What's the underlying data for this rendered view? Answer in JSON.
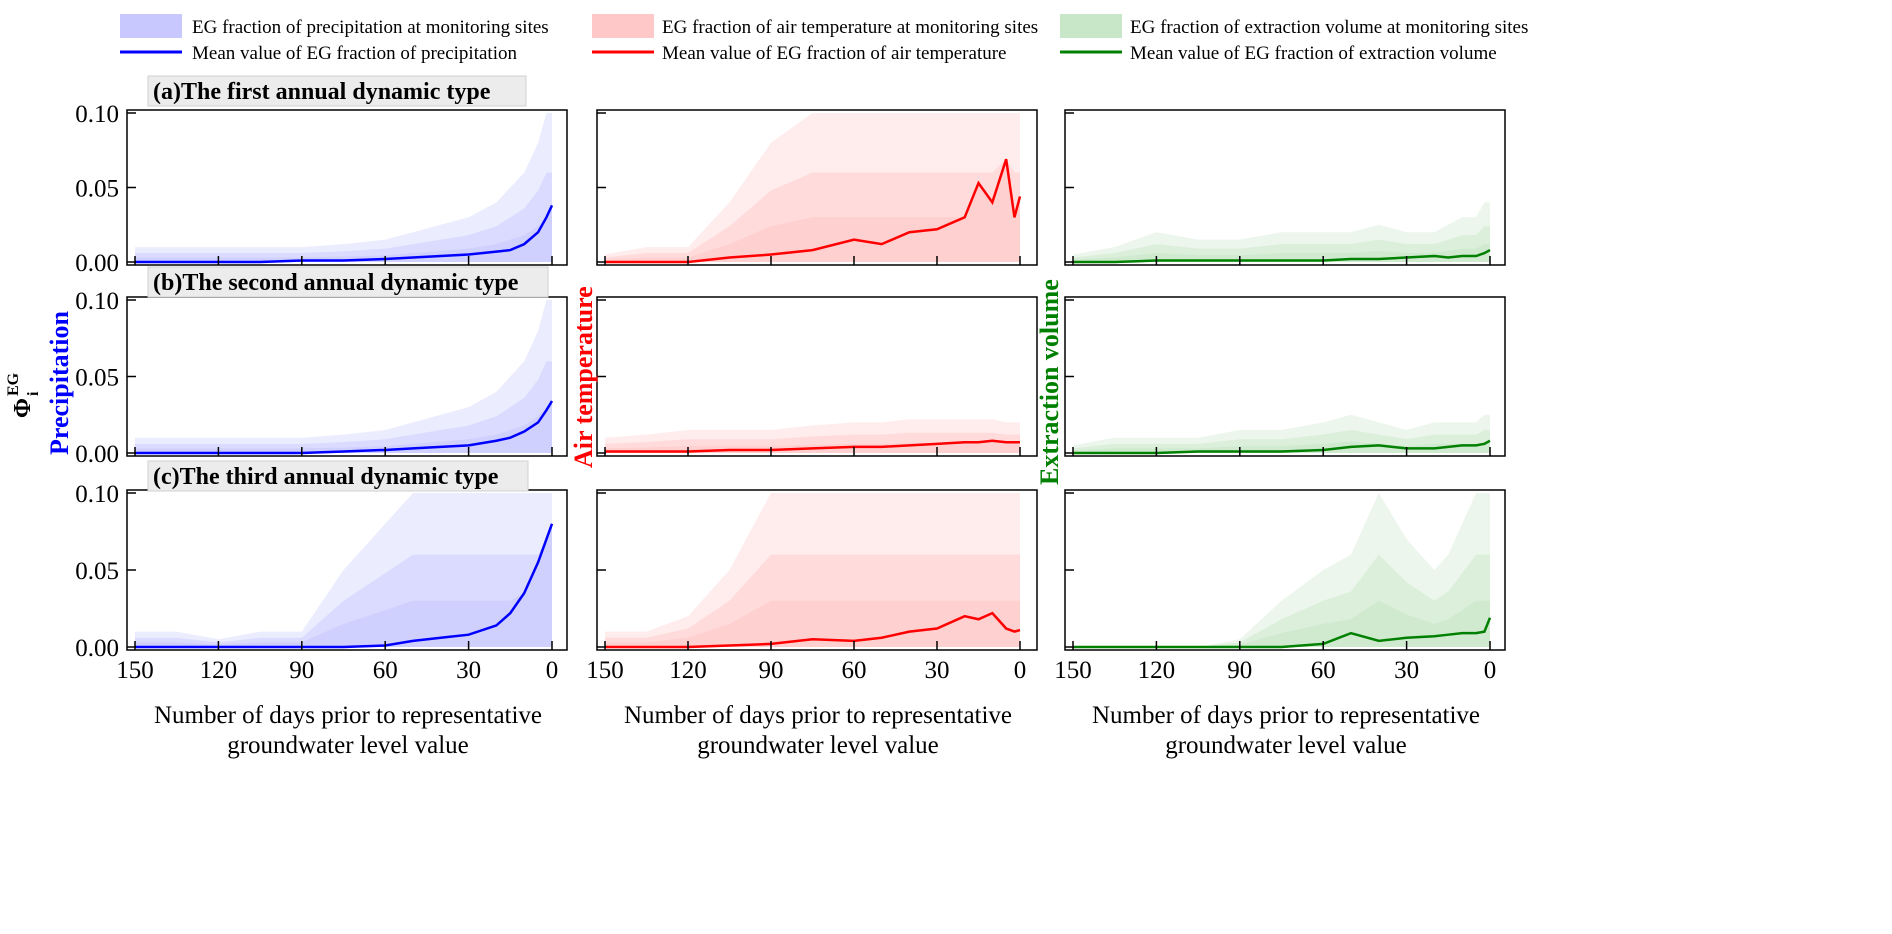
{
  "legend": [
    {
      "band_label": "EG fraction of precipitation at monitoring sites",
      "line_label": "Mean value of EG fraction of precipitation",
      "color": "#0000ff",
      "band_color": "#c8c8ff"
    },
    {
      "band_label": "EG fraction of air temperature at monitoring sites",
      "line_label": "Mean value of EG fraction of air temperature",
      "color": "#ff0000",
      "band_color": "#ffc8c8"
    },
    {
      "band_label": "EG fraction of extraction volume at monitoring sites",
      "line_label": "Mean value of EG fraction of extraction volume",
      "color": "#008000",
      "band_color": "#c8e6c8"
    }
  ],
  "row_titles": [
    "(a)The first annual dynamic type",
    "(b)The second annual dynamic type",
    "(c)The third annual dynamic type"
  ],
  "ylabel_main": "Φ",
  "ylabel_sub": "i",
  "ylabel_sup": "EG",
  "column_ylabels": [
    "Precipitation",
    "Air temperature",
    "Extraction volume"
  ],
  "xlabel_line1": "Number of days prior to representative",
  "xlabel_line2": "groundwater level value",
  "chart_data": {
    "type": "area",
    "x": [
      150,
      135,
      120,
      105,
      90,
      75,
      60,
      50,
      40,
      30,
      20,
      15,
      10,
      5,
      2,
      0
    ],
    "xlim": [
      150,
      0
    ],
    "ylim": [
      0,
      0.1
    ],
    "xticks": [
      "150",
      "120",
      "90",
      "60",
      "30",
      "0"
    ],
    "xtick_values": [
      150,
      120,
      90,
      60,
      30,
      0
    ],
    "yticks": [
      "0.00",
      "0.05",
      "0.10"
    ],
    "ytick_values": [
      0,
      0.05,
      0.1
    ],
    "panels": [
      {
        "row": 0,
        "col": 0,
        "mean": [
          0,
          0,
          0,
          0,
          0.001,
          0.001,
          0.002,
          0.003,
          0.004,
          0.005,
          0.007,
          0.008,
          0.012,
          0.02,
          0.03,
          0.038
        ],
        "upper": [
          0.01,
          0.01,
          0.01,
          0.01,
          0.01,
          0.012,
          0.015,
          0.02,
          0.025,
          0.03,
          0.04,
          0.05,
          0.06,
          0.08,
          0.1,
          0.1
        ]
      },
      {
        "row": 0,
        "col": 1,
        "mean": [
          0,
          0,
          0,
          0.003,
          0.005,
          0.008,
          0.015,
          0.012,
          0.02,
          0.022,
          0.03,
          0.053,
          0.04,
          0.069,
          0.03,
          0.044
        ],
        "upper": [
          0.005,
          0.01,
          0.01,
          0.04,
          0.08,
          0.1,
          0.1,
          0.1,
          0.1,
          0.1,
          0.1,
          0.1,
          0.1,
          0.1,
          0.1,
          0.1
        ]
      },
      {
        "row": 0,
        "col": 2,
        "mean": [
          0,
          0,
          0.001,
          0.001,
          0.001,
          0.001,
          0.001,
          0.002,
          0.002,
          0.003,
          0.004,
          0.003,
          0.004,
          0.004,
          0.006,
          0.008
        ],
        "upper": [
          0.005,
          0.01,
          0.02,
          0.015,
          0.015,
          0.02,
          0.02,
          0.02,
          0.025,
          0.02,
          0.02,
          0.025,
          0.03,
          0.03,
          0.04,
          0.04
        ]
      },
      {
        "row": 1,
        "col": 0,
        "mean": [
          0,
          0,
          0,
          0,
          0,
          0.001,
          0.002,
          0.003,
          0.004,
          0.005,
          0.008,
          0.01,
          0.014,
          0.02,
          0.028,
          0.034
        ],
        "upper": [
          0.01,
          0.01,
          0.01,
          0.01,
          0.01,
          0.012,
          0.015,
          0.02,
          0.025,
          0.03,
          0.04,
          0.05,
          0.06,
          0.08,
          0.1,
          0.1
        ]
      },
      {
        "row": 1,
        "col": 1,
        "mean": [
          0.001,
          0.001,
          0.001,
          0.002,
          0.002,
          0.003,
          0.004,
          0.004,
          0.005,
          0.006,
          0.007,
          0.007,
          0.008,
          0.007,
          0.007,
          0.007
        ],
        "upper": [
          0.01,
          0.012,
          0.015,
          0.015,
          0.015,
          0.018,
          0.02,
          0.02,
          0.022,
          0.022,
          0.022,
          0.022,
          0.022,
          0.02,
          0.02,
          0.02
        ]
      },
      {
        "row": 1,
        "col": 2,
        "mean": [
          0,
          0,
          0,
          0.001,
          0.001,
          0.001,
          0.002,
          0.004,
          0.005,
          0.003,
          0.003,
          0.004,
          0.005,
          0.005,
          0.006,
          0.008
        ],
        "upper": [
          0.005,
          0.01,
          0.01,
          0.01,
          0.015,
          0.015,
          0.02,
          0.025,
          0.02,
          0.015,
          0.02,
          0.02,
          0.02,
          0.02,
          0.025,
          0.025
        ]
      },
      {
        "row": 2,
        "col": 0,
        "mean": [
          0,
          0,
          0,
          0,
          0,
          0,
          0.001,
          0.004,
          0.006,
          0.008,
          0.014,
          0.022,
          0.035,
          0.055,
          0.07,
          0.08
        ],
        "upper": [
          0.01,
          0.01,
          0.005,
          0.01,
          0.01,
          0.05,
          0.08,
          0.1,
          0.1,
          0.1,
          0.1,
          0.1,
          0.1,
          0.1,
          0.1,
          0.1
        ]
      },
      {
        "row": 2,
        "col": 1,
        "mean": [
          0,
          0,
          0,
          0.001,
          0.002,
          0.005,
          0.004,
          0.006,
          0.01,
          0.012,
          0.02,
          0.018,
          0.022,
          0.012,
          0.01,
          0.011
        ],
        "upper": [
          0.01,
          0.01,
          0.02,
          0.05,
          0.1,
          0.1,
          0.1,
          0.1,
          0.1,
          0.1,
          0.1,
          0.1,
          0.1,
          0.1,
          0.1,
          0.1
        ]
      },
      {
        "row": 2,
        "col": 2,
        "mean": [
          0,
          0,
          0,
          0,
          0,
          0,
          0.002,
          0.009,
          0.004,
          0.006,
          0.007,
          0.008,
          0.009,
          0.009,
          0.01,
          0.019
        ],
        "upper": [
          0,
          0,
          0,
          0,
          0.005,
          0.03,
          0.05,
          0.06,
          0.1,
          0.07,
          0.05,
          0.06,
          0.08,
          0.1,
          0.1,
          0.1
        ]
      }
    ]
  }
}
